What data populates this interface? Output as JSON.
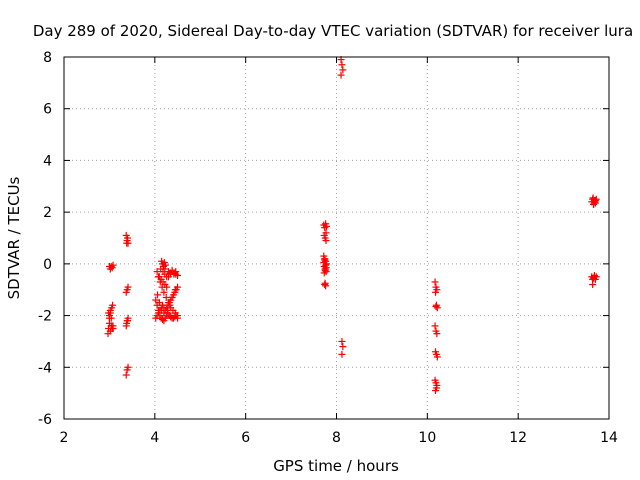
{
  "chart_data": {
    "type": "scatter",
    "title": "Day 289 of 2020, Sidereal Day-to-day VTEC variation (SDTVAR) for receiver lura",
    "xlabel": "GPS time / hours",
    "ylabel": "SDTVAR / TECUs",
    "xlim": [
      2,
      14
    ],
    "ylim": [
      -6,
      8
    ],
    "xticks": [
      2,
      4,
      6,
      8,
      10,
      12,
      14
    ],
    "yticks": [
      -6,
      -4,
      -2,
      0,
      2,
      4,
      6,
      8
    ],
    "grid": true,
    "marker": "+",
    "color": "#ff0000",
    "series": [
      {
        "name": "SDTVAR",
        "x": [
          2.97,
          2.98,
          3.0,
          3.02,
          3.04,
          3.06,
          3.08,
          3.0,
          3.02,
          3.04,
          2.98,
          3.0,
          3.02,
          3.05,
          3.07,
          3.0,
          3.02,
          3.04,
          3.06,
          3.08,
          3.05,
          3.08,
          3.37,
          3.39,
          3.41,
          3.37,
          3.39,
          3.41,
          3.38,
          3.4,
          3.37,
          3.39,
          3.41,
          3.38,
          3.4,
          3.37,
          3.39,
          3.41,
          4.02,
          4.05,
          4.08,
          4.11,
          4.14,
          4.17,
          4.2,
          4.23,
          4.26,
          4.29,
          4.32,
          4.35,
          4.38,
          4.41,
          4.44,
          4.47,
          4.5,
          4.02,
          4.05,
          4.08,
          4.11,
          4.14,
          4.17,
          4.2,
          4.23,
          4.26,
          4.29,
          4.32,
          4.35,
          4.38,
          4.41,
          4.44,
          4.47,
          4.5,
          4.15,
          4.17,
          4.19,
          4.21,
          4.23,
          4.13,
          4.18,
          4.22,
          4.1,
          4.14,
          4.18,
          4.22,
          4.26,
          4.3,
          4.34,
          4.38,
          4.42,
          4.46,
          4.05,
          4.08,
          4.12,
          4.16,
          4.2,
          4.25,
          4.3,
          4.35,
          4.4,
          4.45,
          4.5,
          4.06,
          4.1,
          4.15,
          4.2,
          4.28,
          4.33,
          4.38,
          4.45,
          4.22,
          4.26,
          4.3,
          4.34,
          4.38,
          4.42,
          4.46,
          4.5,
          7.72,
          7.74,
          7.76,
          7.78,
          7.73,
          7.75,
          7.77,
          7.72,
          7.74,
          7.76,
          7.78,
          7.73,
          7.75,
          7.77,
          7.72,
          7.74,
          7.76,
          7.73,
          7.75,
          7.77,
          7.74,
          7.76,
          7.75,
          7.77,
          8.1,
          8.12,
          8.14,
          8.1,
          8.12,
          8.14,
          8.12,
          10.17,
          10.19,
          10.21,
          10.18,
          10.2,
          10.22,
          10.17,
          10.19,
          10.21,
          10.18,
          10.2,
          10.22,
          10.17,
          10.19,
          10.21,
          10.18,
          10.2,
          10.19,
          13.62,
          13.64,
          13.66,
          13.68,
          13.7,
          13.72,
          13.65,
          13.69,
          13.66,
          13.7,
          13.62,
          13.64,
          13.66,
          13.68,
          13.7,
          13.72,
          13.64,
          13.68
        ],
        "y": [
          -2.7,
          -2.5,
          -2.3,
          -2.6,
          -2.4,
          -2.5,
          -2.4,
          -2.0,
          -1.9,
          -2.1,
          -1.9,
          -2.1,
          -1.8,
          -1.7,
          -1.6,
          -0.1,
          -0.2,
          -0.1,
          -0.15,
          -0.05,
          -2.4,
          -2.5,
          -4.3,
          -4.1,
          -4.0,
          -2.4,
          -2.2,
          -2.1,
          -2.3,
          -2.2,
          -1.1,
          -1.0,
          -0.9,
          0.8,
          1.0,
          1.1,
          0.9,
          0.8,
          -2.1,
          -2.0,
          -1.9,
          -1.8,
          -1.7,
          -1.6,
          -1.7,
          -1.8,
          -1.7,
          -1.6,
          -1.5,
          -1.4,
          -1.3,
          -1.2,
          -1.1,
          -1.0,
          -0.9,
          -1.4,
          -1.6,
          -1.8,
          -2.0,
          -2.1,
          -2.15,
          -2.2,
          -2.1,
          -2.0,
          -1.9,
          -2.0,
          -2.05,
          -2.1,
          -2.1,
          -2.05,
          -2.0,
          -2.1,
          0.1,
          0.0,
          -0.1,
          0.05,
          -0.05,
          -0.2,
          -0.3,
          -0.2,
          -0.5,
          -0.6,
          -0.7,
          -0.8,
          -0.9,
          -0.5,
          -0.4,
          -0.3,
          -0.35,
          -0.4,
          -0.3,
          -0.5,
          -0.7,
          -0.9,
          -1.1,
          -1.3,
          -1.5,
          -1.7,
          -1.8,
          -1.9,
          -2.0,
          -1.2,
          -1.5,
          -1.8,
          -1.9,
          -1.8,
          -1.6,
          -1.3,
          -1.0,
          -0.4,
          -0.5,
          -0.3,
          -0.35,
          -0.25,
          -0.4,
          -0.3,
          -0.45,
          1.5,
          1.4,
          1.55,
          1.45,
          1.1,
          1.0,
          0.9,
          0.3,
          0.2,
          0.1,
          0.0,
          -0.1,
          -0.2,
          -0.3,
          0.05,
          0.15,
          -0.05,
          -0.35,
          -0.25,
          -0.15,
          -0.8,
          -0.85,
          -0.75,
          1.2,
          7.9,
          7.7,
          7.5,
          7.3,
          -3.0,
          -3.2,
          -3.5,
          -0.7,
          -0.9,
          -1.0,
          -1.1,
          -1.6,
          -1.7,
          -2.4,
          -2.6,
          -2.7,
          -3.4,
          -3.5,
          -3.6,
          -4.5,
          -4.6,
          -4.7,
          -4.9,
          -4.8,
          -1.65,
          2.4,
          2.5,
          2.3,
          2.45,
          2.35,
          2.5,
          2.55,
          2.4,
          2.3,
          2.45,
          -0.5,
          -0.6,
          -0.55,
          -0.5,
          -0.6,
          -0.5,
          -0.8,
          -0.45
        ]
      }
    ]
  }
}
